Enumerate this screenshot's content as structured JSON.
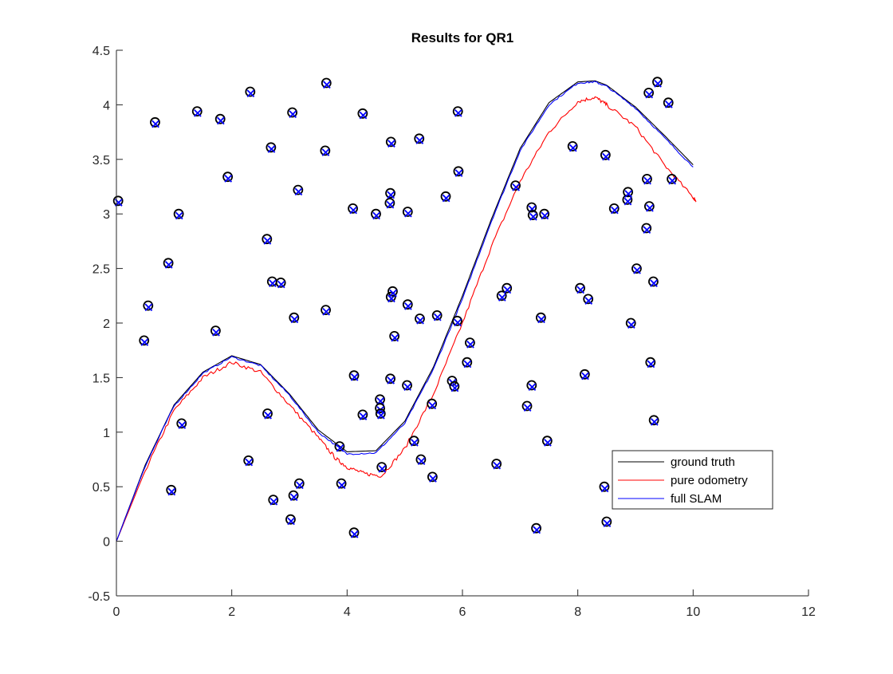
{
  "chart_data": {
    "type": "scatter",
    "title": "Results for QR1",
    "xlabel": "",
    "ylabel": "",
    "xlim": [
      0,
      12
    ],
    "ylim": [
      -0.5,
      4.5
    ],
    "xticks": [
      0,
      2,
      4,
      6,
      8,
      10,
      12
    ],
    "yticks": [
      -0.5,
      0,
      0.5,
      1,
      1.5,
      2,
      2.5,
      3,
      3.5,
      4,
      4.5
    ],
    "xtick_labels": [
      "0",
      "2",
      "4",
      "6",
      "8",
      "10",
      "12"
    ],
    "ytick_labels": [
      "-0.5",
      "0",
      "0.5",
      "1",
      "1.5",
      "2",
      "2.5",
      "3",
      "3.5",
      "4",
      "4.5"
    ],
    "grid": false,
    "legend_position": "lower-right",
    "series": [
      {
        "name": "ground truth",
        "color": "#000000",
        "x": [
          0,
          0.5,
          1.0,
          1.5,
          2.0,
          2.5,
          3.0,
          3.5,
          4.0,
          4.5,
          5.0,
          5.5,
          6.0,
          6.5,
          7.0,
          7.5,
          8.0,
          8.3,
          8.5,
          9.0,
          9.5,
          10.0
        ],
        "y": [
          0,
          0.7,
          1.25,
          1.55,
          1.7,
          1.62,
          1.35,
          1.02,
          0.82,
          0.83,
          1.1,
          1.6,
          2.25,
          2.95,
          3.6,
          4.02,
          4.21,
          4.22,
          4.18,
          3.98,
          3.72,
          3.45
        ]
      },
      {
        "name": "pure odometry",
        "color": "#ff0000",
        "x": [
          0,
          0.5,
          1.0,
          1.5,
          2.0,
          2.5,
          3.0,
          3.5,
          3.8,
          4.0,
          4.3,
          4.6,
          5.0,
          5.5,
          6.0,
          6.5,
          7.0,
          7.5,
          8.0,
          8.3,
          8.5,
          9.0,
          9.5,
          10.0,
          10.05
        ],
        "y": [
          0,
          0.65,
          1.2,
          1.5,
          1.64,
          1.55,
          1.25,
          0.95,
          0.76,
          0.68,
          0.62,
          0.6,
          0.85,
          1.35,
          2.0,
          2.7,
          3.3,
          3.75,
          4.03,
          4.07,
          4.0,
          3.8,
          3.45,
          3.15,
          3.12
        ]
      },
      {
        "name": "full SLAM",
        "color": "#0000ff",
        "x": [
          0,
          0.5,
          1.0,
          1.5,
          2.0,
          2.5,
          3.0,
          3.5,
          4.0,
          4.5,
          5.0,
          5.5,
          6.0,
          6.5,
          7.0,
          7.5,
          8.0,
          8.3,
          8.5,
          9.0,
          9.5,
          10.0
        ],
        "y": [
          0,
          0.69,
          1.24,
          1.54,
          1.69,
          1.61,
          1.34,
          1.0,
          0.8,
          0.81,
          1.08,
          1.58,
          2.22,
          2.93,
          3.58,
          4.0,
          4.2,
          4.21,
          4.17,
          3.97,
          3.7,
          3.43
        ]
      }
    ],
    "landmarks_true": [
      [
        0.03,
        3.12
      ],
      [
        0.48,
        1.84
      ],
      [
        0.55,
        2.16
      ],
      [
        0.67,
        3.84
      ],
      [
        0.9,
        2.55
      ],
      [
        0.95,
        0.47
      ],
      [
        1.08,
        3.0
      ],
      [
        1.13,
        1.08
      ],
      [
        1.4,
        3.94
      ],
      [
        1.72,
        1.93
      ],
      [
        1.8,
        3.87
      ],
      [
        1.93,
        3.34
      ],
      [
        2.29,
        0.74
      ],
      [
        2.32,
        4.12
      ],
      [
        2.61,
        2.77
      ],
      [
        2.62,
        1.17
      ],
      [
        2.68,
        3.61
      ],
      [
        2.7,
        2.38
      ],
      [
        2.72,
        0.38
      ],
      [
        2.85,
        2.37
      ],
      [
        3.02,
        0.2
      ],
      [
        3.05,
        3.93
      ],
      [
        3.07,
        0.42
      ],
      [
        3.08,
        2.05
      ],
      [
        3.15,
        3.22
      ],
      [
        3.17,
        0.53
      ],
      [
        3.62,
        3.58
      ],
      [
        3.63,
        2.12
      ],
      [
        3.64,
        4.2
      ],
      [
        3.87,
        0.87
      ],
      [
        3.9,
        0.53
      ],
      [
        4.1,
        3.05
      ],
      [
        4.12,
        1.52
      ],
      [
        4.12,
        0.08
      ],
      [
        4.27,
        3.92
      ],
      [
        4.27,
        1.16
      ],
      [
        4.5,
        3.0
      ],
      [
        4.57,
        1.3
      ],
      [
        4.57,
        1.22
      ],
      [
        4.58,
        1.17
      ],
      [
        4.6,
        0.68
      ],
      [
        4.74,
        3.1
      ],
      [
        4.75,
        3.19
      ],
      [
        4.76,
        3.66
      ],
      [
        4.75,
        1.49
      ],
      [
        4.76,
        2.24
      ],
      [
        4.79,
        2.29
      ],
      [
        4.82,
        1.88
      ],
      [
        5.04,
        1.43
      ],
      [
        5.05,
        3.02
      ],
      [
        5.05,
        2.17
      ],
      [
        5.16,
        0.92
      ],
      [
        5.25,
        3.69
      ],
      [
        5.26,
        2.04
      ],
      [
        5.28,
        0.75
      ],
      [
        5.47,
        1.26
      ],
      [
        5.48,
        0.59
      ],
      [
        5.56,
        2.07
      ],
      [
        5.71,
        3.16
      ],
      [
        5.82,
        1.47
      ],
      [
        5.86,
        1.42
      ],
      [
        5.91,
        2.02
      ],
      [
        5.92,
        3.94
      ],
      [
        5.93,
        3.39
      ],
      [
        6.08,
        1.64
      ],
      [
        6.13,
        1.82
      ],
      [
        6.59,
        0.71
      ],
      [
        6.68,
        2.25
      ],
      [
        6.77,
        2.32
      ],
      [
        6.92,
        3.26
      ],
      [
        7.12,
        1.24
      ],
      [
        7.2,
        1.43
      ],
      [
        7.2,
        3.06
      ],
      [
        7.22,
        2.99
      ],
      [
        7.28,
        0.12
      ],
      [
        7.36,
        2.05
      ],
      [
        7.42,
        3.0
      ],
      [
        7.47,
        0.92
      ],
      [
        7.91,
        3.62
      ],
      [
        8.04,
        2.32
      ],
      [
        8.12,
        1.53
      ],
      [
        8.18,
        2.22
      ],
      [
        8.46,
        0.5
      ],
      [
        8.48,
        3.54
      ],
      [
        8.5,
        0.18
      ],
      [
        8.63,
        3.05
      ],
      [
        8.86,
        3.13
      ],
      [
        8.87,
        3.2
      ],
      [
        8.92,
        2.0
      ],
      [
        9.02,
        2.5
      ],
      [
        9.19,
        2.87
      ],
      [
        9.2,
        3.32
      ],
      [
        9.23,
        4.11
      ],
      [
        9.24,
        3.07
      ],
      [
        9.26,
        1.64
      ],
      [
        9.31,
        2.38
      ],
      [
        9.32,
        1.11
      ],
      [
        9.38,
        4.21
      ],
      [
        9.57,
        4.02
      ],
      [
        9.63,
        3.32
      ]
    ]
  }
}
